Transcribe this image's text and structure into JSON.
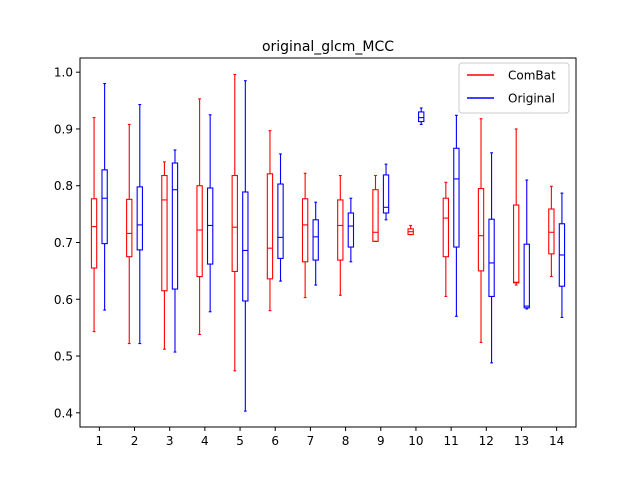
{
  "chart_data": {
    "type": "box",
    "title": "original_glcm_MCC",
    "xlabel": "",
    "ylabel": "",
    "categories": [
      "1",
      "2",
      "3",
      "4",
      "5",
      "6",
      "7",
      "8",
      "9",
      "10",
      "11",
      "12",
      "13",
      "14"
    ],
    "ylim": [
      0.375,
      1.025
    ],
    "yticks": [
      "0.4",
      "0.5",
      "0.6",
      "0.7",
      "0.8",
      "0.9",
      "1.0"
    ],
    "legend_position": "top-right",
    "grid": false,
    "series": [
      {
        "name": "ComBat",
        "color": "#ff0000",
        "boxes": [
          {
            "whislo": 0.543,
            "q1": 0.655,
            "med": 0.728,
            "q3": 0.777,
            "whishi": 0.92
          },
          {
            "whislo": 0.522,
            "q1": 0.675,
            "med": 0.716,
            "q3": 0.776,
            "whishi": 0.908
          },
          {
            "whislo": 0.512,
            "q1": 0.615,
            "med": 0.775,
            "q3": 0.818,
            "whishi": 0.842
          },
          {
            "whislo": 0.538,
            "q1": 0.64,
            "med": 0.722,
            "q3": 0.8,
            "whishi": 0.953
          },
          {
            "whislo": 0.474,
            "q1": 0.649,
            "med": 0.727,
            "q3": 0.818,
            "whishi": 0.996
          },
          {
            "whislo": 0.58,
            "q1": 0.636,
            "med": 0.69,
            "q3": 0.821,
            "whishi": 0.897
          },
          {
            "whislo": 0.603,
            "q1": 0.666,
            "med": 0.731,
            "q3": 0.777,
            "whishi": 0.822
          },
          {
            "whislo": 0.607,
            "q1": 0.669,
            "med": 0.73,
            "q3": 0.775,
            "whishi": 0.818
          },
          {
            "whislo": 0.702,
            "q1": 0.702,
            "med": 0.718,
            "q3": 0.793,
            "whishi": 0.818
          },
          {
            "whislo": 0.714,
            "q1": 0.714,
            "med": 0.719,
            "q3": 0.724,
            "whishi": 0.73
          },
          {
            "whislo": 0.605,
            "q1": 0.675,
            "med": 0.743,
            "q3": 0.778,
            "whishi": 0.806
          },
          {
            "whislo": 0.524,
            "q1": 0.65,
            "med": 0.712,
            "q3": 0.795,
            "whishi": 0.918
          },
          {
            "whislo": 0.625,
            "q1": 0.629,
            "med": 0.63,
            "q3": 0.766,
            "whishi": 0.9
          },
          {
            "whislo": 0.64,
            "q1": 0.68,
            "med": 0.718,
            "q3": 0.759,
            "whishi": 0.799
          }
        ]
      },
      {
        "name": "Original",
        "color": "#0000ff",
        "boxes": [
          {
            "whislo": 0.581,
            "q1": 0.698,
            "med": 0.778,
            "q3": 0.828,
            "whishi": 0.98
          },
          {
            "whislo": 0.522,
            "q1": 0.687,
            "med": 0.731,
            "q3": 0.798,
            "whishi": 0.943
          },
          {
            "whislo": 0.507,
            "q1": 0.618,
            "med": 0.793,
            "q3": 0.84,
            "whishi": 0.863
          },
          {
            "whislo": 0.578,
            "q1": 0.662,
            "med": 0.73,
            "q3": 0.796,
            "whishi": 0.925
          },
          {
            "whislo": 0.403,
            "q1": 0.597,
            "med": 0.686,
            "q3": 0.789,
            "whishi": 0.985
          },
          {
            "whislo": 0.632,
            "q1": 0.672,
            "med": 0.709,
            "q3": 0.803,
            "whishi": 0.856
          },
          {
            "whislo": 0.625,
            "q1": 0.669,
            "med": 0.71,
            "q3": 0.74,
            "whishi": 0.771
          },
          {
            "whislo": 0.666,
            "q1": 0.692,
            "med": 0.729,
            "q3": 0.752,
            "whishi": 0.778
          },
          {
            "whislo": 0.74,
            "q1": 0.752,
            "med": 0.762,
            "q3": 0.819,
            "whishi": 0.838
          },
          {
            "whislo": 0.908,
            "q1": 0.913,
            "med": 0.92,
            "q3": 0.93,
            "whishi": 0.937
          },
          {
            "whislo": 0.57,
            "q1": 0.692,
            "med": 0.812,
            "q3": 0.866,
            "whishi": 0.924
          },
          {
            "whislo": 0.488,
            "q1": 0.605,
            "med": 0.664,
            "q3": 0.741,
            "whishi": 0.858
          },
          {
            "whislo": 0.583,
            "q1": 0.585,
            "med": 0.588,
            "q3": 0.697,
            "whishi": 0.81
          },
          {
            "whislo": 0.568,
            "q1": 0.623,
            "med": 0.678,
            "q3": 0.733,
            "whishi": 0.787
          }
        ]
      }
    ]
  }
}
